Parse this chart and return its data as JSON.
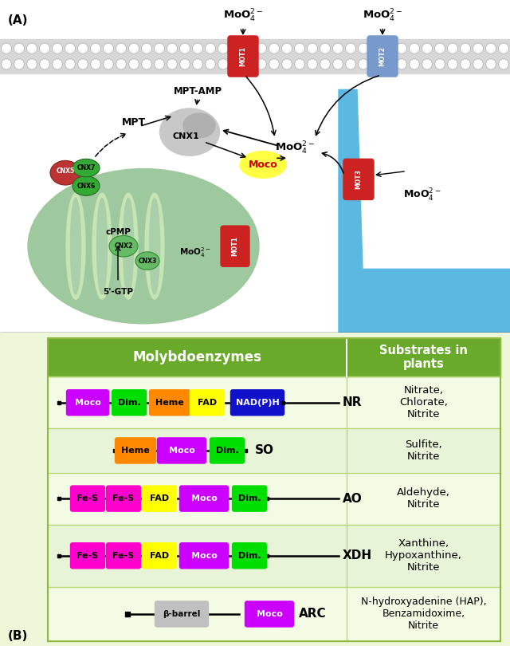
{
  "header_color": "#6aaa2a",
  "col1_header": "Molybdoenzymes",
  "col2_header": "Substrates in\nplants",
  "enzymes": [
    {
      "name": "NR",
      "substrates": "Nitrate,\nChlorate,\nNitrite",
      "domains": [
        {
          "label": "Moco",
          "color": "#cc00ff",
          "text_color": "white"
        },
        {
          "label": "Dim.",
          "color": "#00dd00",
          "text_color": "black"
        },
        {
          "label": "Heme",
          "color": "#ff8800",
          "text_color": "black"
        },
        {
          "label": "FAD",
          "color": "#ffff00",
          "text_color": "black"
        },
        {
          "label": "NAD(P)H",
          "color": "#1111cc",
          "text_color": "white"
        }
      ]
    },
    {
      "name": "SO",
      "substrates": "Sulfite,\nNitrite",
      "domains": [
        {
          "label": "Heme",
          "color": "#ff8800",
          "text_color": "black"
        },
        {
          "label": "Moco",
          "color": "#cc00ff",
          "text_color": "white"
        },
        {
          "label": "Dim.",
          "color": "#00dd00",
          "text_color": "black"
        }
      ]
    },
    {
      "name": "AO",
      "substrates": "Aldehyde,\nNitrite",
      "domains": [
        {
          "label": "Fe-S",
          "color": "#ff00cc",
          "text_color": "black"
        },
        {
          "label": "Fe-S",
          "color": "#ff00cc",
          "text_color": "black"
        },
        {
          "label": "FAD",
          "color": "#ffff00",
          "text_color": "black"
        },
        {
          "label": "Moco",
          "color": "#cc00ff",
          "text_color": "white"
        },
        {
          "label": "Dim.",
          "color": "#00dd00",
          "text_color": "black"
        }
      ]
    },
    {
      "name": "XDH",
      "substrates": "Xanthine,\nHypoxanthine,\nNitrite",
      "domains": [
        {
          "label": "Fe-S",
          "color": "#ff00cc",
          "text_color": "black"
        },
        {
          "label": "Fe-S",
          "color": "#ff00cc",
          "text_color": "black"
        },
        {
          "label": "FAD",
          "color": "#ffff00",
          "text_color": "black"
        },
        {
          "label": "Moco",
          "color": "#cc00ff",
          "text_color": "white"
        },
        {
          "label": "Dim.",
          "color": "#00dd00",
          "text_color": "black"
        }
      ]
    },
    {
      "name": "ARC",
      "substrates": "N-hydroxyadenine (HAP),\nBenzamidoxime,\nNitrite",
      "domains": [
        {
          "label": "β-barrel",
          "color": "#c0c0c0",
          "text_color": "black"
        },
        {
          "label": "Moco",
          "color": "#cc00ff",
          "text_color": "white"
        }
      ]
    }
  ]
}
